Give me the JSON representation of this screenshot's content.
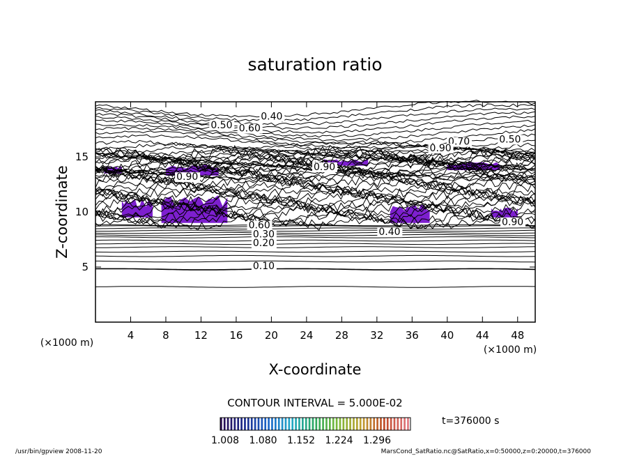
{
  "chart_data": {
    "type": "contour",
    "title": "saturation ratio",
    "xlabel": "X-coordinate",
    "ylabel": "Z-coordinate",
    "x_unit": "(×1000 m)",
    "z_unit": "(×1000 m)",
    "xlim": [
      0,
      50
    ],
    "ylim": [
      0,
      20
    ],
    "x_ticks": [
      "4",
      "8",
      "12",
      "16",
      "20",
      "24",
      "28",
      "32",
      "36",
      "40",
      "44",
      "48"
    ],
    "y_ticks": [
      "5",
      "10",
      "15"
    ],
    "contour_interval_text": "CONTOUR INTERVAL = 5.000E-02",
    "contour_labels": [
      {
        "x": 18.8,
        "z": 18.4,
        "text": "0.40"
      },
      {
        "x": 13.1,
        "z": 17.6,
        "text": "0.50"
      },
      {
        "x": 16.3,
        "z": 17.3,
        "text": "0.60"
      },
      {
        "x": 45.9,
        "z": 16.3,
        "text": "0.50"
      },
      {
        "x": 40.1,
        "z": 16.1,
        "text": "0.70"
      },
      {
        "x": 38.0,
        "z": 15.5,
        "text": "0.90"
      },
      {
        "x": 24.8,
        "z": 13.8,
        "text": "0.90"
      },
      {
        "x": 9.2,
        "z": 12.9,
        "text": "0.90"
      },
      {
        "x": 17.4,
        "z": 8.5,
        "text": "0.60"
      },
      {
        "x": 17.9,
        "z": 7.7,
        "text": "0.30"
      },
      {
        "x": 17.9,
        "z": 6.9,
        "text": "0.20"
      },
      {
        "x": 32.2,
        "z": 7.9,
        "text": "0.40"
      },
      {
        "x": 17.9,
        "z": 4.8,
        "text": "0.10"
      },
      {
        "x": 46.2,
        "z": 8.8,
        "text": "0.90"
      }
    ],
    "supersaturated_regions": [
      {
        "x": [
          1,
          3
        ],
        "z": [
          13.5,
          14.2
        ]
      },
      {
        "x": [
          3,
          6.5
        ],
        "z": [
          9.5,
          11.2
        ]
      },
      {
        "x": [
          7.5,
          15
        ],
        "z": [
          9.0,
          11.6
        ]
      },
      {
        "x": [
          8,
          14
        ],
        "z": [
          13.3,
          14.3
        ]
      },
      {
        "x": [
          33.5,
          38
        ],
        "z": [
          9.0,
          10.8
        ]
      },
      {
        "x": [
          40,
          46
        ],
        "z": [
          13.8,
          14.6
        ]
      },
      {
        "x": [
          26,
          31
        ],
        "z": [
          14.2,
          14.8
        ]
      },
      {
        "x": [
          45,
          48
        ],
        "z": [
          9.5,
          10.4
        ]
      }
    ],
    "colorbar": {
      "ticks": [
        "1.008",
        "1.080",
        "1.152",
        "1.224",
        "1.296"
      ],
      "colors": [
        "#2a0a50",
        "#1b2a8c",
        "#1a64c8",
        "#22a8c8",
        "#2aa860",
        "#7ab838",
        "#c0a030",
        "#c04828",
        "#e07880"
      ]
    },
    "time_label": "t=376000 s",
    "contour_color": "#000000",
    "fill_color": "#7d1fcf"
  },
  "footer": {
    "left": "/usr/bin/gpview  2008-11-20",
    "right": "MarsCond_SatRatio.nc@SatRatio,x=0:50000,z=0:20000,t=376000"
  }
}
